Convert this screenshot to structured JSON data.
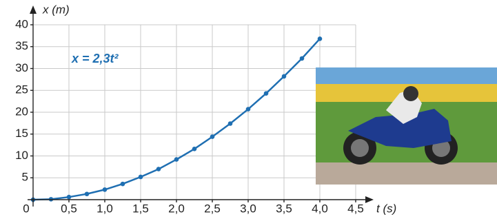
{
  "chart_data": {
    "type": "line",
    "x_label": "x (m)",
    "t_label": "t (s)",
    "annotation": "x = 2,3t²",
    "x": [
      0,
      0.25,
      0.5,
      0.75,
      1.0,
      1.25,
      1.5,
      1.75,
      2.0,
      2.25,
      2.5,
      2.75,
      3.0,
      3.25,
      3.5,
      3.75,
      4.0
    ],
    "values": [
      0,
      0.1,
      0.6,
      1.3,
      2.3,
      3.6,
      5.2,
      7.0,
      9.2,
      11.6,
      14.4,
      17.4,
      20.7,
      24.3,
      28.2,
      32.3,
      36.8
    ],
    "color": "#1f6fb2",
    "xlim": [
      0,
      4.5
    ],
    "xticks": [
      0,
      {
        "value": 0.5,
        "label": "0,5"
      },
      {
        "value": 1.0,
        "label": "1,0"
      },
      {
        "value": 1.5,
        "label": "1,5"
      },
      {
        "value": 2.0,
        "label": "2,0"
      },
      {
        "value": 2.5,
        "label": "2,5"
      },
      {
        "value": 3.0,
        "label": "3,0"
      },
      {
        "value": 3.5,
        "label": "3,5"
      },
      {
        "value": 4.0,
        "label": "4,0"
      },
      {
        "value": 4.5,
        "label": "4,5"
      }
    ],
    "ylim": [
      0,
      40
    ],
    "yticks": [
      5,
      10,
      15,
      20,
      25,
      30,
      35,
      40
    ],
    "grid": true
  }
}
